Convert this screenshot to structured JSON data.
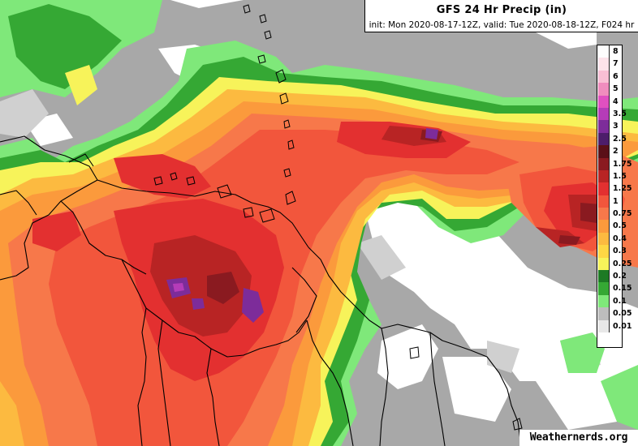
{
  "title": "GFS 24 Hr Precip (in)",
  "subtitle": "init: Mon 2020-08-17-12Z, valid: Tue 2020-08-18-12Z, F024 hr",
  "watermark": "Weathernerds.org",
  "legend": [
    {
      "label": "8",
      "color": "#fdfdfd"
    },
    {
      "label": "7",
      "color": "#fde3ea"
    },
    {
      "label": "6",
      "color": "#f9bfd4"
    },
    {
      "label": "5",
      "color": "#f08dbe"
    },
    {
      "label": "4",
      "color": "#e050c0"
    },
    {
      "label": "3.5",
      "color": "#b53cb8"
    },
    {
      "label": "3",
      "color": "#7d2c9a"
    },
    {
      "label": "2.5",
      "color": "#4d1d6a"
    },
    {
      "label": "2",
      "color": "#5a1018"
    },
    {
      "label": "1.75",
      "color": "#8a1a20"
    },
    {
      "label": "1.5",
      "color": "#b82424"
    },
    {
      "label": "1.25",
      "color": "#e33030"
    },
    {
      "label": "1",
      "color": "#f2563c"
    },
    {
      "label": "0.75",
      "color": "#f7784a"
    },
    {
      "label": "0.5",
      "color": "#fb9a3c"
    },
    {
      "label": "0.4",
      "color": "#fcba40"
    },
    {
      "label": "0.3",
      "color": "#fed744"
    },
    {
      "label": "0.25",
      "color": "#f7f35a"
    },
    {
      "label": "0.2",
      "color": "#1d7a24"
    },
    {
      "label": "0.15",
      "color": "#35a834"
    },
    {
      "label": "0.1",
      "color": "#7fe87a"
    },
    {
      "label": "0.05",
      "color": "#bdbdbd"
    },
    {
      "label": "0.01",
      "color": "#e8e8e8"
    }
  ],
  "colors": {
    "background": "#a8a8a8",
    "no_precip": "#ffffff",
    "light_gray": "#d0d0d0",
    "coastline": "#000000"
  }
}
